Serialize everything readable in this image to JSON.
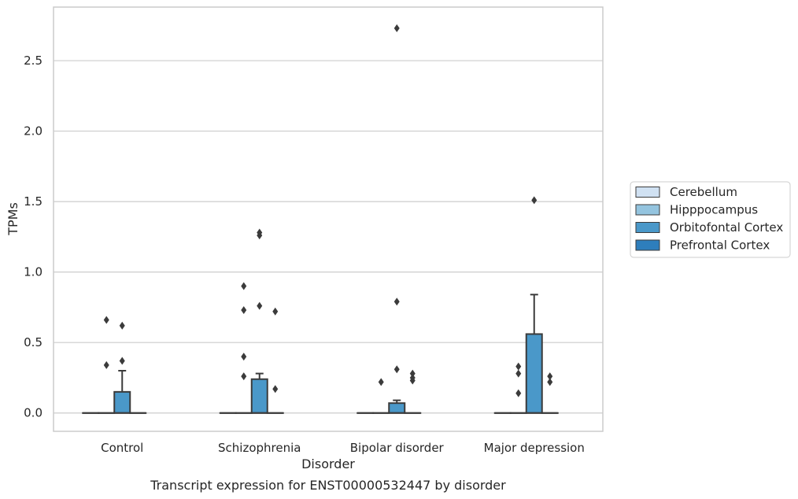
{
  "caption": "Transcript expression for ENST00000532447 by disorder",
  "chart_data": {
    "type": "box",
    "xlabel": "Disorder",
    "ylabel": "TPMs",
    "ylim": [
      -0.13,
      2.88
    ],
    "yticks": [
      0.0,
      0.5,
      1.0,
      1.5,
      2.0,
      2.5
    ],
    "ytick_labels": [
      "0.0",
      "0.5",
      "1.0",
      "1.5",
      "2.0",
      "2.5"
    ],
    "grid": true,
    "legend_position": "right",
    "categories": [
      "Control",
      "Schizophrenia",
      "Bipolar disorder",
      "Major depression"
    ],
    "series": [
      {
        "name": "Cerebellum",
        "color": "#d0e1f2",
        "boxes": [
          {
            "q1": 0,
            "median": 0,
            "q3": 0,
            "whisker_low": 0,
            "whisker_high": 0,
            "outliers": []
          },
          {
            "q1": 0,
            "median": 0,
            "q3": 0,
            "whisker_low": 0,
            "whisker_high": 0,
            "outliers": []
          },
          {
            "q1": 0,
            "median": 0,
            "q3": 0,
            "whisker_low": 0,
            "whisker_high": 0,
            "outliers": []
          },
          {
            "q1": 0,
            "median": 0,
            "q3": 0,
            "whisker_low": 0,
            "whisker_high": 0,
            "outliers": []
          }
        ]
      },
      {
        "name": "Hipppocampus",
        "color": "#94c4df",
        "boxes": [
          {
            "q1": 0,
            "median": 0,
            "q3": 0,
            "whisker_low": 0,
            "whisker_high": 0,
            "outliers": [
              0.34,
              0.66
            ]
          },
          {
            "q1": 0,
            "median": 0,
            "q3": 0,
            "whisker_low": 0,
            "whisker_high": 0,
            "outliers": [
              0.26,
              0.4,
              0.73,
              0.9
            ]
          },
          {
            "q1": 0,
            "median": 0,
            "q3": 0,
            "whisker_low": 0,
            "whisker_high": 0,
            "outliers": [
              0.22
            ]
          },
          {
            "q1": 0,
            "median": 0,
            "q3": 0,
            "whisker_low": 0,
            "whisker_high": 0,
            "outliers": [
              0.14,
              0.28,
              0.33
            ]
          }
        ]
      },
      {
        "name": "Orbitofontal Cortex",
        "color": "#4a98c9",
        "boxes": [
          {
            "q1": 0,
            "median": 0,
            "q3": 0.15,
            "whisker_low": 0,
            "whisker_high": 0.3,
            "outliers": [
              0.37,
              0.62
            ]
          },
          {
            "q1": 0,
            "median": 0,
            "q3": 0.24,
            "whisker_low": 0,
            "whisker_high": 0.28,
            "outliers": [
              0.76,
              1.26,
              1.28
            ]
          },
          {
            "q1": 0,
            "median": 0,
            "q3": 0.07,
            "whisker_low": 0,
            "whisker_high": 0.09,
            "outliers": [
              0.31,
              0.79,
              2.73
            ]
          },
          {
            "q1": 0,
            "median": 0,
            "q3": 0.56,
            "whisker_low": 0,
            "whisker_high": 0.84,
            "outliers": [
              1.51
            ]
          }
        ]
      },
      {
        "name": "Prefrontal Cortex",
        "color": "#2e7ebc",
        "boxes": [
          {
            "q1": 0,
            "median": 0,
            "q3": 0,
            "whisker_low": 0,
            "whisker_high": 0,
            "outliers": []
          },
          {
            "q1": 0,
            "median": 0,
            "q3": 0,
            "whisker_low": 0,
            "whisker_high": 0,
            "outliers": [
              0.17,
              0.72
            ]
          },
          {
            "q1": 0,
            "median": 0,
            "q3": 0,
            "whisker_low": 0,
            "whisker_high": 0,
            "outliers": [
              0.23,
              0.25,
              0.28
            ]
          },
          {
            "q1": 0,
            "median": 0,
            "q3": 0,
            "whisker_low": 0,
            "whisker_high": 0,
            "outliers": [
              0.22,
              0.26
            ]
          }
        ]
      }
    ]
  }
}
